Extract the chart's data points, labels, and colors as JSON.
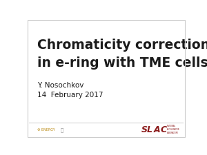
{
  "title_line1": "Chromaticity correction options",
  "title_line2": "in e-ring with TME cells",
  "author": "Y. Nosochkov",
  "date": "14  February 2017",
  "bg_color": "#ffffff",
  "title_color": "#1a1a1a",
  "author_color": "#1a1a1a",
  "title_fontsize": 13.5,
  "author_fontsize": 7.5,
  "slac_color": "#8b1a1a",
  "border_color": "#cccccc",
  "footer_line_color": "#cccccc",
  "doe_color": "#b8860b",
  "gray_color": "#888888"
}
